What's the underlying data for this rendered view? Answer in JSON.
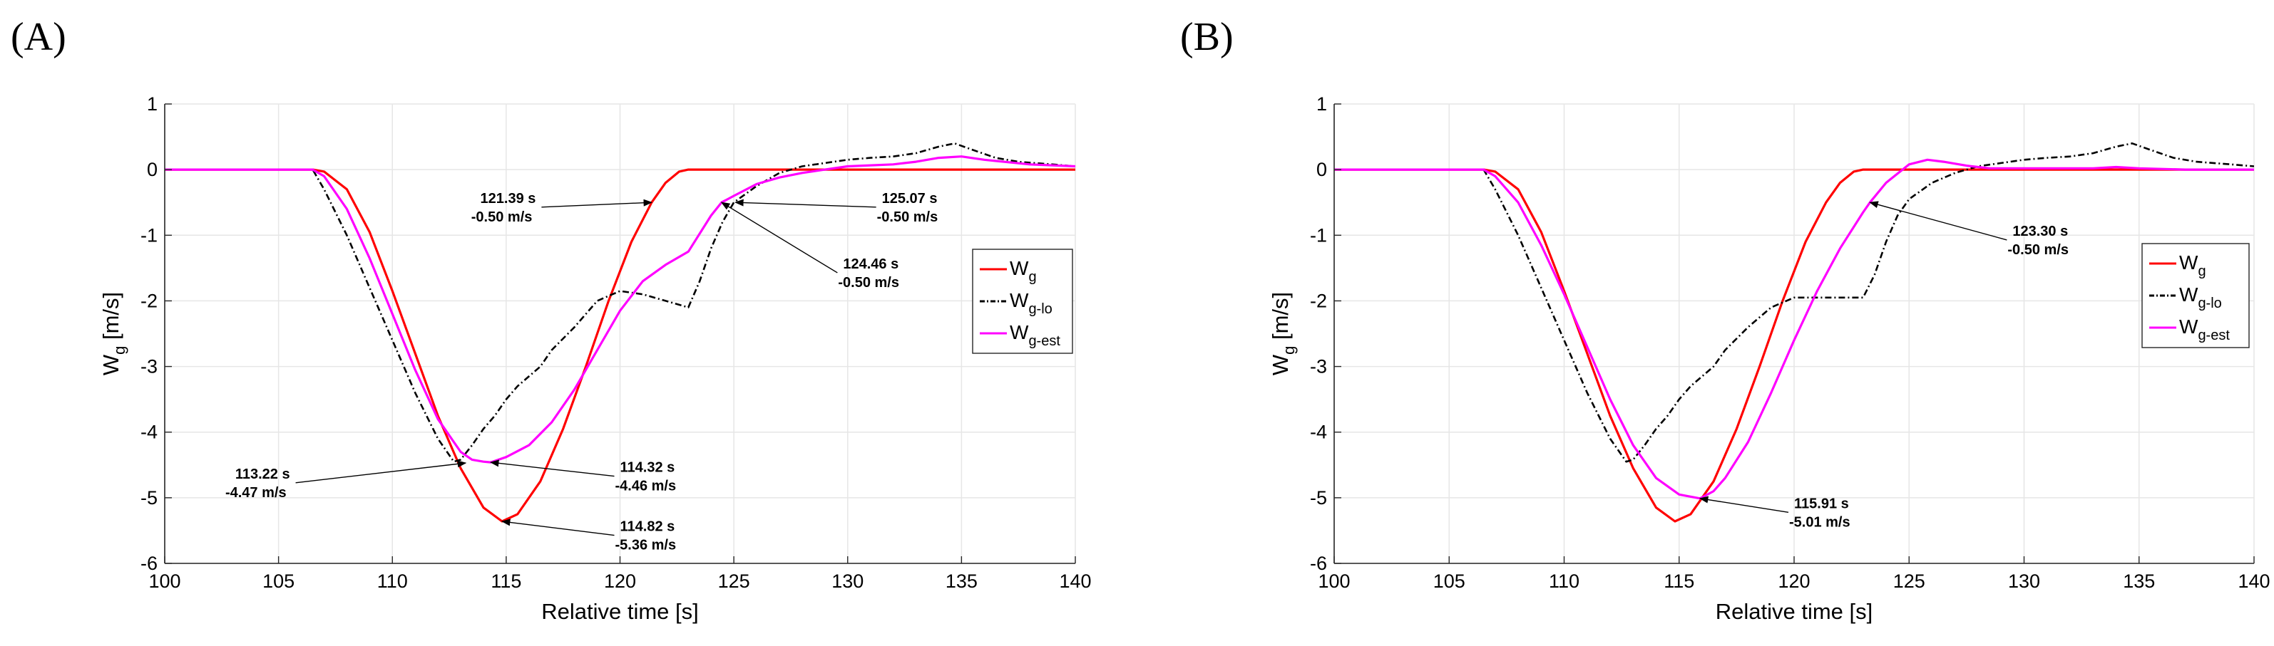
{
  "chart_data": [
    {
      "panel_label": "(A)",
      "type": "line",
      "xlabel": "Relative time [s]",
      "ylabel_main": "W",
      "ylabel_sub": "g",
      "ylabel_unit": " [m/s]",
      "xlim": [
        100,
        140
      ],
      "ylim": [
        -6,
        1
      ],
      "xticks": [
        100,
        105,
        110,
        115,
        120,
        125,
        130,
        135,
        140
      ],
      "yticks": [
        -6,
        -5,
        -4,
        -3,
        -2,
        -1,
        0,
        1
      ],
      "grid": true,
      "legend_position": "right",
      "legend": [
        {
          "main": "W",
          "sub": "g",
          "color": "#ff0000",
          "dash": "solid"
        },
        {
          "main": "W",
          "sub": "g-lo",
          "color": "#000000",
          "dash": "dashdot"
        },
        {
          "main": "W",
          "sub": "g-est",
          "color": "#ff00ff",
          "dash": "solid"
        }
      ],
      "series": [
        {
          "name": "Wg",
          "color": "#ff0000",
          "dash": "solid",
          "x": [
            100,
            106.5,
            107,
            108,
            109,
            110,
            111,
            112,
            113,
            114,
            114.82,
            115.5,
            116.5,
            117.5,
            118.5,
            119.5,
            120.5,
            121.39,
            122,
            122.6,
            123,
            140
          ],
          "y": [
            0,
            0,
            -0.03,
            -0.3,
            -0.95,
            -1.85,
            -2.8,
            -3.75,
            -4.55,
            -5.15,
            -5.36,
            -5.25,
            -4.75,
            -3.95,
            -3.0,
            -2.0,
            -1.1,
            -0.5,
            -0.2,
            -0.03,
            0,
            0
          ]
        },
        {
          "name": "Wg-lo",
          "color": "#000000",
          "dash": "dashdot",
          "x": [
            100,
            106.5,
            107,
            108,
            109,
            110,
            111,
            112,
            112.7,
            113,
            113.5,
            114,
            114.5,
            115,
            115.5,
            116,
            116.5,
            117,
            118,
            119,
            120,
            121,
            122,
            123,
            123.5,
            124,
            124.5,
            125,
            126,
            127,
            128,
            129,
            130,
            131,
            132,
            133,
            134,
            134.7,
            135.5,
            136.5,
            137.5,
            139,
            140
          ],
          "y": [
            0,
            0,
            -0.3,
            -1.0,
            -1.8,
            -2.6,
            -3.4,
            -4.1,
            -4.45,
            -4.42,
            -4.2,
            -3.95,
            -3.75,
            -3.5,
            -3.3,
            -3.15,
            -3.0,
            -2.75,
            -2.4,
            -2.0,
            -1.85,
            -1.9,
            -2.0,
            -2.1,
            -1.7,
            -1.2,
            -0.8,
            -0.5,
            -0.25,
            -0.05,
            0.05,
            0.1,
            0.15,
            0.18,
            0.2,
            0.25,
            0.35,
            0.4,
            0.3,
            0.18,
            0.12,
            0.08,
            0.05
          ]
        },
        {
          "name": "Wg-est",
          "color": "#ff00ff",
          "dash": "solid",
          "x": [
            100,
            106.5,
            107,
            108,
            109,
            110,
            111,
            112,
            113,
            113.5,
            114,
            114.32,
            115,
            116,
            117,
            118,
            119,
            120,
            121,
            122,
            123,
            124,
            124.46,
            125,
            126,
            127,
            128,
            129,
            130,
            132,
            133,
            134,
            135,
            136,
            138,
            140
          ],
          "y": [
            0,
            0,
            -0.1,
            -0.6,
            -1.35,
            -2.2,
            -3.05,
            -3.8,
            -4.3,
            -4.42,
            -4.45,
            -4.46,
            -4.38,
            -4.2,
            -3.85,
            -3.35,
            -2.75,
            -2.15,
            -1.7,
            -1.45,
            -1.25,
            -0.7,
            -0.5,
            -0.4,
            -0.22,
            -0.12,
            -0.05,
            0,
            0.05,
            0.08,
            0.12,
            0.18,
            0.2,
            0.15,
            0.08,
            0.05
          ]
        }
      ],
      "annotations": [
        {
          "time": "121.39 s",
          "value": "-0.50 m/s",
          "x": 121.39,
          "y": -0.5,
          "tx": 116.3,
          "ty": -0.55,
          "anchor": "end"
        },
        {
          "time": "125.07 s",
          "value": "-0.50 m/s",
          "x": 125.07,
          "y": -0.5,
          "tx": 131.5,
          "ty": -0.55,
          "anchor": "start"
        },
        {
          "time": "124.46 s",
          "value": "-0.50 m/s",
          "x": 124.46,
          "y": -0.5,
          "tx": 129.8,
          "ty": -1.55,
          "anchor": "start"
        },
        {
          "time": "113.22 s",
          "value": "-4.47 m/s",
          "x": 113.22,
          "y": -4.47,
          "tx": 105.5,
          "ty": -4.75,
          "anchor": "end"
        },
        {
          "time": "114.32 s",
          "value": "-4.46 m/s",
          "x": 114.32,
          "y": -4.46,
          "tx": 120.0,
          "ty": -4.65,
          "anchor": "start"
        },
        {
          "time": "114.82 s",
          "value": "-5.36 m/s",
          "x": 114.82,
          "y": -5.36,
          "tx": 120.0,
          "ty": -5.55,
          "anchor": "start"
        }
      ]
    },
    {
      "panel_label": "(B)",
      "type": "line",
      "xlabel": "Relative time [s]",
      "ylabel_main": "W",
      "ylabel_sub": "g",
      "ylabel_unit": " [m/s]",
      "xlim": [
        100,
        140
      ],
      "ylim": [
        -6,
        1
      ],
      "xticks": [
        100,
        105,
        110,
        115,
        120,
        125,
        130,
        135,
        140
      ],
      "yticks": [
        -6,
        -5,
        -4,
        -3,
        -2,
        -1,
        0,
        1
      ],
      "grid": true,
      "legend_position": "right",
      "legend": [
        {
          "main": "W",
          "sub": "g",
          "color": "#ff0000",
          "dash": "solid"
        },
        {
          "main": "W",
          "sub": "g-lo",
          "color": "#000000",
          "dash": "dashdot"
        },
        {
          "main": "W",
          "sub": "g-est",
          "color": "#ff00ff",
          "dash": "solid"
        }
      ],
      "series": [
        {
          "name": "Wg",
          "color": "#ff0000",
          "dash": "solid",
          "x": [
            100,
            106.5,
            107,
            108,
            109,
            110,
            111,
            112,
            113,
            114,
            114.82,
            115.5,
            116.5,
            117.5,
            118.5,
            119.5,
            120.5,
            121.39,
            122,
            122.6,
            123,
            140
          ],
          "y": [
            0,
            0,
            -0.03,
            -0.3,
            -0.95,
            -1.85,
            -2.8,
            -3.75,
            -4.55,
            -5.15,
            -5.36,
            -5.25,
            -4.75,
            -3.95,
            -3.0,
            -2.0,
            -1.1,
            -0.5,
            -0.2,
            -0.03,
            0,
            0
          ]
        },
        {
          "name": "Wg-lo",
          "color": "#000000",
          "dash": "dashdot",
          "x": [
            100,
            106.5,
            107,
            108,
            109,
            110,
            111,
            112,
            112.7,
            113,
            113.5,
            114,
            114.5,
            115,
            115.5,
            116,
            116.5,
            117,
            118,
            119,
            120,
            121,
            122,
            123,
            123.5,
            124,
            124.5,
            125,
            126,
            127,
            128,
            129,
            130,
            131,
            132,
            133,
            134,
            134.7,
            135.5,
            136.5,
            137.5,
            139,
            140
          ],
          "y": [
            0,
            0,
            -0.3,
            -1.0,
            -1.8,
            -2.6,
            -3.4,
            -4.1,
            -4.45,
            -4.42,
            -4.2,
            -3.95,
            -3.75,
            -3.5,
            -3.3,
            -3.15,
            -3.0,
            -2.75,
            -2.4,
            -2.1,
            -1.95,
            -1.95,
            -1.95,
            -1.95,
            -1.6,
            -1.1,
            -0.7,
            -0.45,
            -0.2,
            -0.05,
            0.05,
            0.1,
            0.15,
            0.18,
            0.2,
            0.25,
            0.35,
            0.4,
            0.3,
            0.18,
            0.12,
            0.08,
            0.05
          ]
        },
        {
          "name": "Wg-est",
          "color": "#ff00ff",
          "dash": "solid",
          "x": [
            100,
            106.5,
            107,
            108,
            109,
            110,
            111,
            112,
            113,
            114,
            115,
            115.91,
            116.5,
            117,
            118,
            119,
            120,
            121,
            122,
            123,
            123.3,
            124,
            125,
            125.8,
            126.5,
            127.5,
            128.5,
            130,
            133,
            134,
            135,
            137,
            140
          ],
          "y": [
            0,
            0,
            -0.1,
            -0.5,
            -1.15,
            -1.9,
            -2.7,
            -3.5,
            -4.2,
            -4.7,
            -4.95,
            -5.01,
            -4.9,
            -4.7,
            -4.15,
            -3.4,
            -2.6,
            -1.85,
            -1.2,
            -0.65,
            -0.5,
            -0.2,
            0.08,
            0.15,
            0.12,
            0.06,
            0.02,
            0.02,
            0.02,
            0.04,
            0.02,
            0.0,
            0.0
          ]
        }
      ],
      "annotations": [
        {
          "time": "123.30 s",
          "value": "-0.50 m/s",
          "x": 123.3,
          "y": -0.5,
          "tx": 129.5,
          "ty": -1.05,
          "anchor": "start"
        },
        {
          "time": "115.91 s",
          "value": "-5.01 m/s",
          "x": 115.91,
          "y": -5.01,
          "tx": 120.0,
          "ty": -5.2,
          "anchor": "start"
        }
      ]
    }
  ]
}
